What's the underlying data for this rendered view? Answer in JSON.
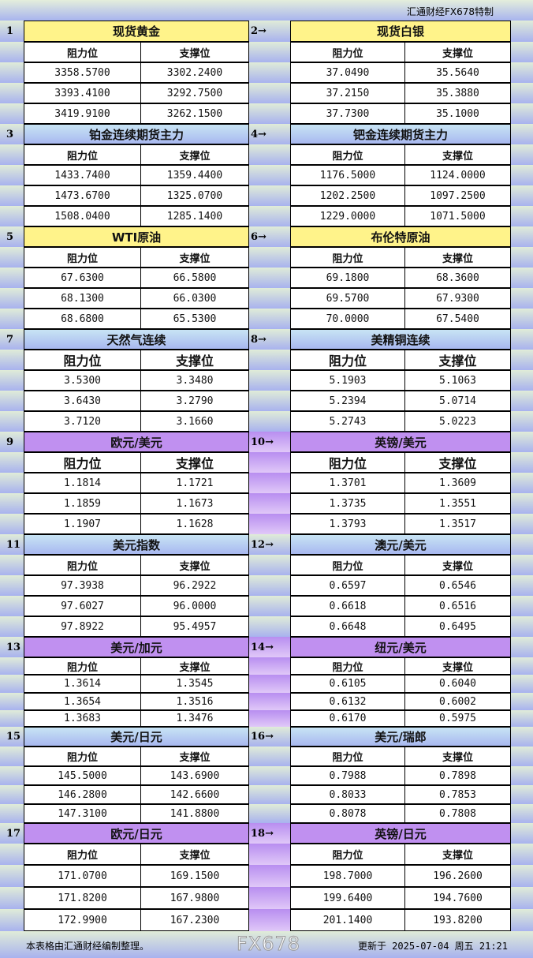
{
  "header": {
    "brand": "汇通财经FX678特制"
  },
  "columns": {
    "resistance": "阻力位",
    "support": "支撑位"
  },
  "colors": {
    "yellow": "#fff38a",
    "blue": "#b0c8f0",
    "purple": "#c090f0"
  },
  "sections": [
    {
      "num": "1",
      "title": "现货黄金",
      "color": "yellow",
      "rows": [
        [
          "3358.5700",
          "3302.2400"
        ],
        [
          "3393.4100",
          "3292.7500"
        ],
        [
          "3419.9100",
          "3262.1500"
        ]
      ]
    },
    {
      "num": "2→",
      "title": "现货白银",
      "color": "yellow",
      "rows": [
        [
          "37.0490",
          "35.5640"
        ],
        [
          "37.2150",
          "35.3880"
        ],
        [
          "37.7300",
          "35.1000"
        ]
      ]
    },
    {
      "num": "3",
      "title": "铂金连续期货主力",
      "color": "blue",
      "rows": [
        [
          "1433.7400",
          "1359.4400"
        ],
        [
          "1473.6700",
          "1325.0700"
        ],
        [
          "1508.0400",
          "1285.1400"
        ]
      ]
    },
    {
      "num": "4→",
      "title": "钯金连续期货主力",
      "color": "blue",
      "rows": [
        [
          "1176.5000",
          "1124.0000"
        ],
        [
          "1202.2500",
          "1097.2500"
        ],
        [
          "1229.0000",
          "1071.5000"
        ]
      ]
    },
    {
      "num": "5",
      "title": "WTI原油",
      "color": "yellow",
      "rows": [
        [
          "67.6300",
          "66.5800"
        ],
        [
          "68.1300",
          "66.0300"
        ],
        [
          "68.6800",
          "65.5300"
        ]
      ]
    },
    {
      "num": "6→",
      "title": "布伦特原油",
      "color": "yellow",
      "rows": [
        [
          "69.1800",
          "68.3600"
        ],
        [
          "69.5700",
          "67.9300"
        ],
        [
          "70.0000",
          "67.5400"
        ]
      ]
    },
    {
      "num": "7",
      "title": "天然气连续",
      "color": "blue",
      "rows": [
        [
          "3.5300",
          "3.3480"
        ],
        [
          "3.6430",
          "3.2790"
        ],
        [
          "3.7120",
          "3.1660"
        ]
      ]
    },
    {
      "num": "8→",
      "title": "美精铜连续",
      "color": "blue",
      "rows": [
        [
          "5.1903",
          "5.1063"
        ],
        [
          "5.2394",
          "5.0714"
        ],
        [
          "5.2743",
          "5.0223"
        ]
      ]
    },
    {
      "num": "9",
      "title": "欧元/美元",
      "color": "purple",
      "rows": [
        [
          "1.1814",
          "1.1721"
        ],
        [
          "1.1859",
          "1.1673"
        ],
        [
          "1.1907",
          "1.1628"
        ]
      ]
    },
    {
      "num": "10→",
      "title": "英镑/美元",
      "color": "purple",
      "rows": [
        [
          "1.3701",
          "1.3609"
        ],
        [
          "1.3735",
          "1.3551"
        ],
        [
          "1.3793",
          "1.3517"
        ]
      ]
    },
    {
      "num": "11",
      "title": "美元指数",
      "color": "blue",
      "rows": [
        [
          "97.3938",
          "96.2922"
        ],
        [
          "97.6027",
          "96.0000"
        ],
        [
          "97.8922",
          "95.4957"
        ]
      ]
    },
    {
      "num": "12→",
      "title": "澳元/美元",
      "color": "blue",
      "rows": [
        [
          "0.6597",
          "0.6546"
        ],
        [
          "0.6618",
          "0.6516"
        ],
        [
          "0.6648",
          "0.6495"
        ]
      ]
    },
    {
      "num": "13",
      "title": "美元/加元",
      "color": "purple",
      "rows": [
        [
          "1.3614",
          "1.3545"
        ],
        [
          "1.3654",
          "1.3516"
        ],
        [
          "1.3683",
          "1.3476"
        ]
      ]
    },
    {
      "num": "14→",
      "title": "纽元/美元",
      "color": "purple",
      "rows": [
        [
          "0.6105",
          "0.6040"
        ],
        [
          "0.6132",
          "0.6002"
        ],
        [
          "0.6170",
          "0.5975"
        ]
      ]
    },
    {
      "num": "15",
      "title": "美元/日元",
      "color": "blue",
      "rows": [
        [
          "145.5000",
          "143.6900"
        ],
        [
          "146.2800",
          "142.6600"
        ],
        [
          "147.3100",
          "141.8800"
        ]
      ]
    },
    {
      "num": "16→",
      "title": "美元/瑞郎",
      "color": "blue",
      "rows": [
        [
          "0.7988",
          "0.7898"
        ],
        [
          "0.8033",
          "0.7853"
        ],
        [
          "0.8078",
          "0.7808"
        ]
      ]
    },
    {
      "num": "17",
      "title": "欧元/日元",
      "color": "purple",
      "rows": [
        [
          "171.0700",
          "169.1500"
        ],
        [
          "171.8200",
          "167.9800"
        ],
        [
          "172.9900",
          "167.2300"
        ]
      ]
    },
    {
      "num": "18→",
      "title": "英镑/日元",
      "color": "purple",
      "rows": [
        [
          "198.7000",
          "196.2600"
        ],
        [
          "199.6400",
          "194.7600"
        ],
        [
          "201.1400",
          "193.8200"
        ]
      ]
    }
  ],
  "footer": {
    "note": "本表格由汇通财经编制整理。",
    "updated": "更新于 2025-07-04 周五 21:21"
  },
  "watermark": "FX678"
}
